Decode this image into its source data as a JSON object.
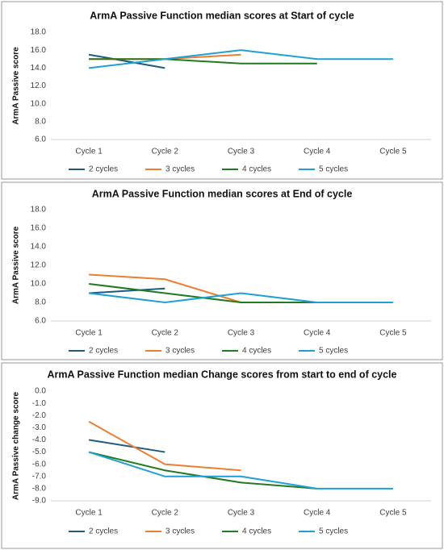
{
  "chart_data": [
    {
      "type": "line",
      "title": "ArmA Passive Function median scores at Start of cycle",
      "y_label": "ArmA Passive score",
      "categories": [
        "Cycle 1",
        "Cycle 2",
        "Cycle 3",
        "Cycle 4",
        "Cycle 5"
      ],
      "ylim": [
        6,
        18
      ],
      "yticks": [
        {
          "value": 6,
          "label": "6.0"
        },
        {
          "value": 8,
          "label": "8.0"
        },
        {
          "value": 10,
          "label": "10.0"
        },
        {
          "value": 12,
          "label": "12.0"
        },
        {
          "value": 14,
          "label": "14.0"
        },
        {
          "value": 16,
          "label": "16.0"
        },
        {
          "value": 18,
          "label": "18.0"
        }
      ],
      "series": [
        {
          "name": "2 cycles",
          "color": "#1c5a86",
          "values": [
            15.5,
            14.0,
            null,
            null,
            null
          ]
        },
        {
          "name": "3 cycles",
          "color": "#ed7d31",
          "values": [
            15.0,
            15.0,
            15.5,
            null,
            null
          ]
        },
        {
          "name": "4 cycles",
          "color": "#217a1f",
          "values": [
            15.0,
            15.0,
            14.5,
            14.5,
            null
          ]
        },
        {
          "name": "5 cycles",
          "color": "#1ea0d6",
          "values": [
            14.0,
            15.0,
            16.0,
            15.0,
            15.0
          ]
        }
      ],
      "legend": "bottom"
    },
    {
      "type": "line",
      "title": "ArmA Passive Function median scores at End of cycle",
      "y_label": "ArmA Passive score",
      "categories": [
        "Cycle 1",
        "Cycle 2",
        "Cycle 3",
        "Cycle 4",
        "Cycle 5"
      ],
      "ylim": [
        6,
        18
      ],
      "yticks": [
        {
          "value": 6,
          "label": "6.0"
        },
        {
          "value": 8,
          "label": "8.0"
        },
        {
          "value": 10,
          "label": "10.0"
        },
        {
          "value": 12,
          "label": "12.0"
        },
        {
          "value": 14,
          "label": "14.0"
        },
        {
          "value": 16,
          "label": "16.0"
        },
        {
          "value": 18,
          "label": "18.0"
        }
      ],
      "series": [
        {
          "name": "2 cycles",
          "color": "#1c5a86",
          "values": [
            9.0,
            9.5,
            null,
            null,
            null
          ]
        },
        {
          "name": "3 cycles",
          "color": "#ed7d31",
          "values": [
            11.0,
            10.5,
            8.0,
            null,
            null
          ]
        },
        {
          "name": "4 cycles",
          "color": "#217a1f",
          "values": [
            10.0,
            9.0,
            8.0,
            8.0,
            null
          ]
        },
        {
          "name": "5 cycles",
          "color": "#1ea0d6",
          "values": [
            9.0,
            8.0,
            9.0,
            8.0,
            8.0
          ]
        }
      ],
      "legend": "bottom"
    },
    {
      "type": "line",
      "title": "ArmA Passive Function median Change scores from  start to end of cycle",
      "y_label": "ArmA Passive change  score",
      "categories": [
        "Cycle 1",
        "Cycle 2",
        "Cycle 3",
        "Cycle 4",
        "Cycle 5"
      ],
      "ylim": [
        -9,
        0
      ],
      "yticks": [
        {
          "value": 0,
          "label": "0.0"
        },
        {
          "value": -1,
          "label": "-1.0"
        },
        {
          "value": -2,
          "label": "-2.0"
        },
        {
          "value": -3,
          "label": "-3.0"
        },
        {
          "value": -4,
          "label": "-4.0"
        },
        {
          "value": -5,
          "label": "-5.0"
        },
        {
          "value": -6,
          "label": "-6.0"
        },
        {
          "value": -7,
          "label": "-7.0"
        },
        {
          "value": -8,
          "label": "-8.0"
        },
        {
          "value": -9,
          "label": "-9.0"
        }
      ],
      "series": [
        {
          "name": "2 cycles",
          "color": "#1c5a86",
          "values": [
            -4.0,
            -5.0,
            null,
            null,
            null
          ]
        },
        {
          "name": "3 cycles",
          "color": "#ed7d31",
          "values": [
            -2.5,
            -6.0,
            -6.5,
            null,
            null
          ]
        },
        {
          "name": "4 cycles",
          "color": "#217a1f",
          "values": [
            -5.0,
            -6.5,
            -7.5,
            -8.0,
            null
          ]
        },
        {
          "name": "5 cycles",
          "color": "#1ea0d6",
          "values": [
            -5.0,
            -7.0,
            -7.0,
            -8.0,
            -8.0
          ]
        }
      ],
      "legend": "bottom"
    }
  ]
}
